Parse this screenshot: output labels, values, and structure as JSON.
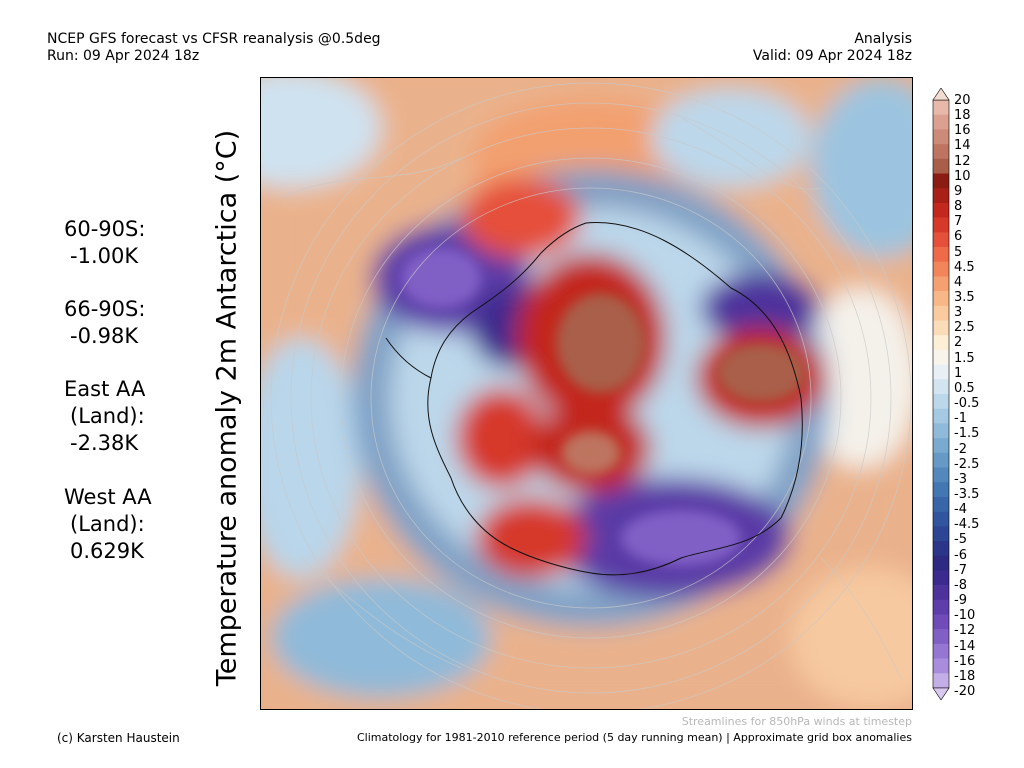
{
  "header": {
    "title": "NCEP GFS forecast vs CFSR reanalysis @0.5deg",
    "run": "Run: 09 Apr 2024 18z",
    "type": "Analysis",
    "valid": "Valid: 09 Apr 2024 18z"
  },
  "axis_label": "Temperature anomaly 2m Antarctica (°C)",
  "stats": [
    {
      "label": "60-90S:",
      "value": "-1.00K"
    },
    {
      "label": "66-90S:",
      "value": "-0.98K"
    },
    {
      "label": "East AA",
      "label2": "(Land):",
      "value": "-2.38K"
    },
    {
      "label": "West AA",
      "label2": "(Land):",
      "value": "0.629K"
    }
  ],
  "colorbar": {
    "labels": [
      "20",
      "18",
      "16",
      "14",
      "12",
      "10",
      "9",
      "8",
      "7",
      "6",
      "5",
      "4.5",
      "4",
      "3.5",
      "3",
      "2.5",
      "2",
      "1.5",
      "1",
      "0.5",
      "-0.5",
      "-1",
      "-1.5",
      "-2",
      "-2.5",
      "-3",
      "-3.5",
      "-4",
      "-4.5",
      "-5",
      "-6",
      "-7",
      "-8",
      "-9",
      "-10",
      "-12",
      "-14",
      "-16",
      "-18",
      "-20"
    ],
    "colors": [
      "#e8b9a8",
      "#dba090",
      "#cc8a78",
      "#bd7460",
      "#a95e4a",
      "#8b1c14",
      "#a82018",
      "#c3281e",
      "#d6382a",
      "#e5503a",
      "#ef6a48",
      "#f3855a",
      "#f5a070",
      "#f7b786",
      "#f9cb9e",
      "#fbdcb8",
      "#fdeed6",
      "#f8f4ec",
      "#e8f0f6",
      "#d2e4f0",
      "#bcd7ea",
      "#a5c9e2",
      "#8fbad9",
      "#7aaad0",
      "#6699c6",
      "#5488bc",
      "#4377b2",
      "#3866a8",
      "#30559e",
      "#2c4694",
      "#2b368a",
      "#2e2a82",
      "#3c2a8e",
      "#4d329c",
      "#5e3eaa",
      "#6f4cb8",
      "#8160c6",
      "#9576d2",
      "#a98ddd",
      "#c4aee8"
    ]
  },
  "footer": {
    "streamline_note": "Streamlines for 850hPa winds at timestep",
    "copyright": "(c) Karsten Haustein",
    "climatology": "Climatology for 1981-2010 reference period (5 day running mean) | Approximate grid box anomalies"
  }
}
